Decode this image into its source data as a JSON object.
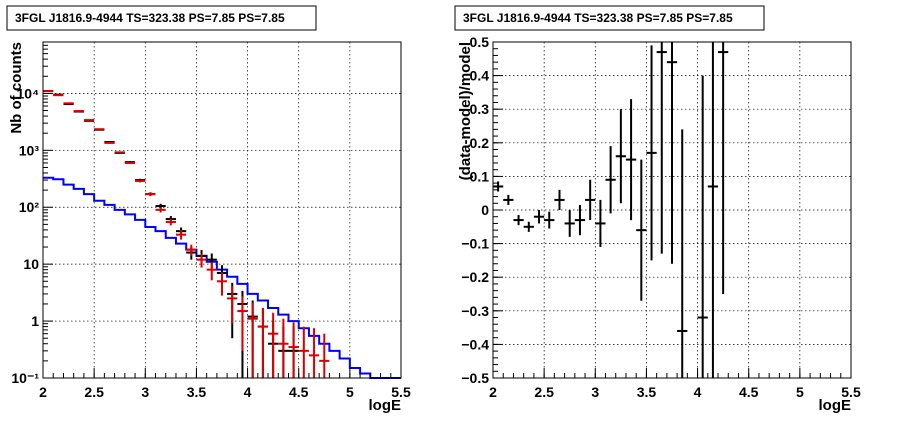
{
  "chart_data": [
    {
      "type": "line",
      "title": "3FGL J1816.9-4944 TS=323.38 PS=7.85 PS=7.85",
      "xlabel": "logE",
      "ylabel": "Nb of counts",
      "xlim": [
        2,
        5.5
      ],
      "ylim": [
        0.1,
        80000
      ],
      "yscale": "log",
      "grid": true,
      "x_ticks": [
        2,
        2.5,
        3,
        3.5,
        4,
        4.5,
        5,
        5.5
      ],
      "x_tick_labels": [
        "2",
        "2.5",
        "3",
        "3.5",
        "4",
        "4.5",
        "5",
        "5.5"
      ],
      "y_ticks": [
        0.1,
        1,
        10,
        100,
        1000,
        10000
      ],
      "y_tick_labels": [
        "10⁻¹",
        "1",
        "10",
        "10²",
        "10³",
        "10⁴"
      ],
      "bin_width": 0.1,
      "series": [
        {
          "kind": "step",
          "color": "#0000ff",
          "x": [
            2.05,
            2.15,
            2.25,
            2.35,
            2.45,
            2.55,
            2.65,
            2.75,
            2.85,
            2.95,
            3.05,
            3.15,
            3.25,
            3.35,
            3.45,
            3.55,
            3.65,
            3.75,
            3.85,
            3.95,
            4.05,
            4.15,
            4.25,
            4.35,
            4.45,
            4.55,
            4.65,
            4.75,
            4.85,
            4.95,
            5.05,
            5.15,
            5.25,
            5.35,
            5.45
          ],
          "y": [
            330,
            310,
            250,
            210,
            170,
            130,
            110,
            90,
            75,
            60,
            45,
            38,
            29,
            23,
            18,
            14,
            11,
            8,
            6,
            4.5,
            3,
            2.3,
            1.7,
            1.3,
            1,
            0.75,
            0.55,
            0.4,
            0.3,
            0.22,
            0.15,
            0.12,
            0.1,
            0.1,
            0.1
          ]
        },
        {
          "kind": "errorbar",
          "color": "#000000",
          "x": [
            2.05,
            2.15,
            2.25,
            2.35,
            2.45,
            2.55,
            2.65,
            2.75,
            2.85,
            2.95,
            3.05,
            3.15,
            3.25,
            3.35,
            3.45,
            3.55,
            3.65,
            3.75,
            3.85,
            3.95,
            4.05,
            4.15,
            4.25,
            4.35,
            4.45
          ],
          "y": [
            11000,
            9500,
            6500,
            4800,
            3300,
            2300,
            1400,
            900,
            620,
            300,
            170,
            105,
            62,
            38,
            16,
            14,
            12,
            7,
            3,
            2,
            1.2,
            0.8,
            0.4,
            0.3,
            0.3
          ],
          "y_err_low": [
            100,
            100,
            80,
            70,
            60,
            50,
            40,
            30,
            25,
            17,
            13,
            10,
            8,
            6,
            4,
            3.7,
            3.4,
            2.6,
            2.5,
            1.98,
            1.1,
            0.7,
            0.4,
            0.3,
            0.3
          ],
          "y_err_high": [
            100,
            100,
            80,
            70,
            60,
            50,
            40,
            30,
            25,
            17,
            13,
            10,
            8,
            6,
            4,
            3.7,
            3.4,
            2.6,
            1.7,
            1.4,
            1.1,
            0.9,
            0.6,
            0.5,
            0.5
          ]
        },
        {
          "kind": "errorbar",
          "color": "#dd0000",
          "x": [
            2.05,
            2.15,
            2.25,
            2.35,
            2.45,
            2.55,
            2.65,
            2.75,
            2.85,
            2.95,
            3.05,
            3.15,
            3.25,
            3.35,
            3.45,
            3.55,
            3.65,
            3.75,
            3.85,
            3.95,
            4.05,
            4.15,
            4.25,
            4.35,
            4.45,
            4.55,
            4.65,
            4.75
          ],
          "y": [
            11000,
            9300,
            6700,
            4900,
            3400,
            2350,
            1350,
            920,
            600,
            290,
            170,
            90,
            55,
            33,
            18,
            12,
            8,
            5,
            2.5,
            1.5,
            1.1,
            0.8,
            0.6,
            0.4,
            0.35,
            0.3,
            0.25,
            0.2
          ],
          "y_err_low": [
            100,
            100,
            80,
            70,
            60,
            50,
            37,
            30,
            24,
            17,
            13,
            9,
            7,
            6,
            4,
            3.3,
            2.8,
            2.2,
            1.6,
            1.2,
            1,
            0.79,
            0.599,
            0.399,
            0.349,
            0.299,
            0.249,
            0.199
          ],
          "y_err_high": [
            100,
            100,
            80,
            70,
            60,
            50,
            37,
            30,
            24,
            17,
            13,
            9,
            7,
            6,
            4,
            3.3,
            2.8,
            2.2,
            1.6,
            1.2,
            1,
            0.9,
            0.8,
            0.7,
            0.6,
            0.5,
            0.5,
            0.4
          ]
        }
      ]
    },
    {
      "type": "scatter",
      "title": "3FGL J1816.9-4944 TS=323.38 PS=7.85 PS=7.85",
      "xlabel": "logE",
      "ylabel": "(data-model)/model",
      "xlim": [
        2,
        5.5
      ],
      "ylim": [
        -0.5,
        0.5
      ],
      "grid": true,
      "x_ticks": [
        2,
        2.5,
        3,
        3.5,
        4,
        4.5,
        5,
        5.5
      ],
      "x_tick_labels": [
        "2",
        "2.5",
        "3",
        "3.5",
        "4",
        "4.5",
        "5",
        "5.5"
      ],
      "y_ticks": [
        -0.5,
        -0.4,
        -0.3,
        -0.2,
        -0.1,
        0,
        0.1,
        0.2,
        0.3,
        0.4,
        0.5
      ],
      "y_tick_labels": [
        "−0.5",
        "−0.4",
        "−0.3",
        "−0.2",
        "−0.1",
        "0",
        "0.1",
        "0.2",
        "0.3",
        "0.4",
        "0.5"
      ],
      "bin_width": 0.1,
      "series": [
        {
          "kind": "errorbar",
          "color": "#000000",
          "x": [
            2.05,
            2.15,
            2.25,
            2.35,
            2.45,
            2.55,
            2.65,
            2.75,
            2.85,
            2.95,
            3.05,
            3.15,
            3.25,
            3.35,
            3.45,
            3.55,
            3.65,
            3.75,
            3.85,
            4.05,
            4.15,
            4.25
          ],
          "y": [
            0.07,
            0.03,
            -0.03,
            -0.05,
            -0.02,
            -0.03,
            0.03,
            -0.04,
            -0.03,
            0.03,
            -0.04,
            0.09,
            0.16,
            0.15,
            -0.06,
            0.17,
            0.47,
            0.44,
            -0.36,
            -0.32,
            0.07,
            0.47
          ],
          "y_err": [
            0.015,
            0.015,
            0.015,
            0.015,
            0.02,
            0.025,
            0.03,
            0.04,
            0.045,
            0.06,
            0.07,
            0.1,
            0.14,
            0.18,
            0.21,
            0.32,
            0.6,
            0.6,
            0.6,
            0.72,
            0.72,
            0.72
          ]
        }
      ]
    }
  ]
}
